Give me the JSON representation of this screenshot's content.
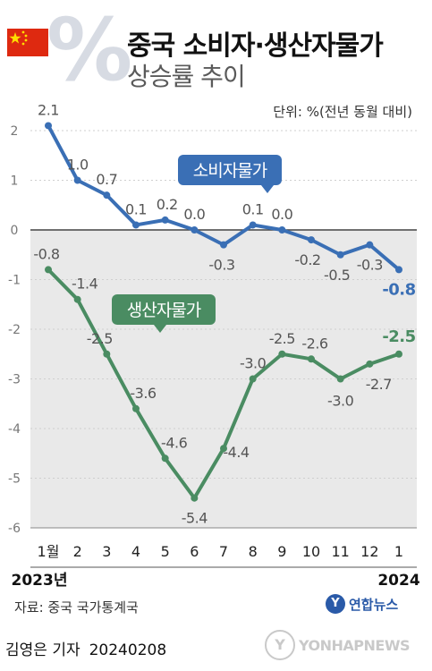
{
  "header": {
    "title": "중국 소비자·생산자물가",
    "subtitle": "상승률 추이",
    "percent_symbol": "%",
    "unit": "단위: %(전년 동월 대비)"
  },
  "chart_data": {
    "type": "line",
    "categories": [
      "1월",
      "2",
      "3",
      "4",
      "5",
      "6",
      "7",
      "8",
      "9",
      "10",
      "11",
      "12",
      "1"
    ],
    "year_labels": [
      "2023년",
      "2024"
    ],
    "ylim": [
      -6,
      2
    ],
    "yticks": [
      2,
      1,
      0,
      -1,
      -2,
      -3,
      -4,
      -5,
      -6
    ],
    "series": [
      {
        "name": "소비자물가",
        "color": "#3a6fb5",
        "values": [
          2.1,
          1.0,
          0.7,
          0.1,
          0.2,
          0.0,
          -0.3,
          0.1,
          0.0,
          -0.2,
          -0.5,
          -0.3,
          -0.8
        ],
        "labels": [
          "2.1",
          "1.0",
          "0.7",
          "0.1",
          "0.2",
          "0.0",
          "-0.3",
          "0.1",
          "0.0",
          "-0.2",
          "-0.5",
          "-0.3",
          "-0.8"
        ]
      },
      {
        "name": "생산자물가",
        "color": "#4a8c62",
        "values": [
          -0.8,
          -1.4,
          -2.5,
          -3.6,
          -4.6,
          -5.4,
          -4.4,
          -3.0,
          -2.5,
          -2.6,
          -3.0,
          -2.7,
          -2.5
        ],
        "labels": [
          "-0.8",
          "-1.4",
          "-2.5",
          "-3.6",
          "-4.6",
          "-5.4",
          "-4.4",
          "-3.0",
          "-2.5",
          "-2.6",
          "-3.0",
          "-2.7",
          "-2.5"
        ]
      }
    ],
    "negative_region_color": "#e9e9e9"
  },
  "footer": {
    "source": "자료: 중국 국가통계국",
    "logo_text": "연합뉴스",
    "reporter": "김영은 기자",
    "date": "20240208",
    "watermark": "YONHAPNEWS"
  }
}
